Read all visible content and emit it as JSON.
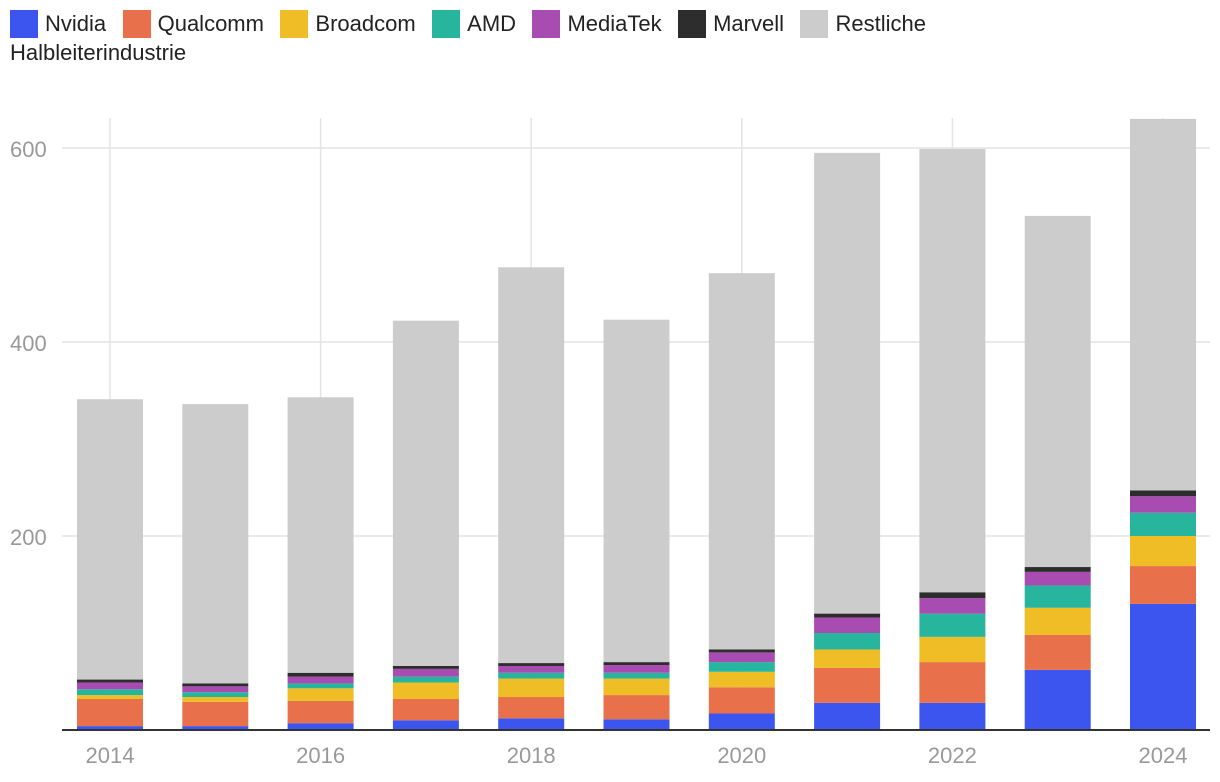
{
  "chart_data": {
    "type": "bar",
    "stacked": true,
    "title": "",
    "xlabel": "",
    "ylabel": "",
    "ylim": [
      0,
      630
    ],
    "yticks": [
      200,
      400,
      600
    ],
    "xticks": [
      "2014",
      "2016",
      "2018",
      "2020",
      "2022",
      "2024"
    ],
    "legend_position": "top-left",
    "categories": [
      "2014",
      "2015",
      "2016",
      "2017",
      "2018",
      "2019",
      "2020",
      "2021",
      "2022",
      "2023",
      "2024"
    ],
    "series": [
      {
        "name": "Nvidia",
        "color": "#3c55ee",
        "values": [
          4,
          4,
          7,
          10,
          12,
          11,
          17,
          28,
          28,
          62,
          130
        ]
      },
      {
        "name": "Qualcomm",
        "color": "#e8704a",
        "values": [
          28,
          25,
          23,
          22,
          22,
          25,
          27,
          36,
          42,
          36,
          39
        ]
      },
      {
        "name": "Broadcom",
        "color": "#efbd25",
        "values": [
          4,
          5,
          13,
          17,
          19,
          17,
          16,
          19,
          26,
          28,
          31
        ]
      },
      {
        "name": "AMD",
        "color": "#27b59e",
        "values": [
          6,
          5,
          5,
          6,
          6,
          6,
          10,
          17,
          24,
          23,
          24
        ]
      },
      {
        "name": "MediaTek",
        "color": "#a94cb2",
        "values": [
          7,
          6,
          7,
          8,
          7,
          8,
          10,
          16,
          16,
          14,
          17
        ]
      },
      {
        "name": "Marvell",
        "color": "#2d2d2d",
        "values": [
          3,
          3,
          4,
          3,
          3,
          3,
          3,
          4,
          6,
          5,
          6
        ]
      },
      {
        "name": "Restliche Halbleiterindustrie",
        "color": "#cccccc",
        "values": [
          289,
          288,
          284,
          356,
          408,
          353,
          388,
          475,
          457,
          362,
          383
        ]
      }
    ]
  },
  "legend": {
    "items": [
      "Nvidia",
      "Qualcomm",
      "Broadcom",
      "AMD",
      "MediaTek",
      "Marvell",
      "Restliche"
    ],
    "continuation": "Halbleiterindustrie"
  }
}
